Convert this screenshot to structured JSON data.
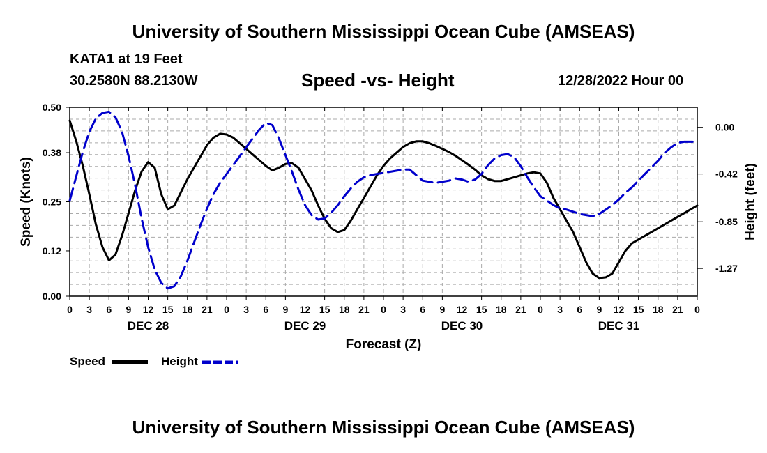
{
  "header": {
    "title": "University of Southern Mississippi Ocean Cube (AMSEAS)",
    "station": "KATA1 at 19 Feet",
    "coords": "30.2580N  88.2130W",
    "subtitle": "Speed -vs- Height",
    "datetime": "12/28/2022 Hour 00"
  },
  "footer": {
    "title": "University of Southern Mississippi Ocean Cube (AMSEAS)"
  },
  "colors": {
    "speed": "#000000",
    "height": "#0000cc",
    "grid": "#aaaaaa"
  },
  "chart_data": {
    "type": "line",
    "title": "Speed -vs- Height",
    "xlabel": "Forecast (Z)",
    "ylabel": "Speed (Knots)",
    "y2label": "Height (feet)",
    "xlim": [
      0,
      96
    ],
    "ylim": [
      0,
      0.5
    ],
    "y2lim": [
      -1.52,
      0.18
    ],
    "grid": true,
    "legend": "bottom-left",
    "x_tick_hours": [
      0,
      3,
      6,
      9,
      12,
      15,
      18,
      21,
      24,
      27,
      30,
      33,
      36,
      39,
      42,
      45,
      48,
      51,
      54,
      57,
      60,
      63,
      66,
      69,
      72,
      75,
      78,
      81,
      84,
      87,
      90,
      93,
      96
    ],
    "x_tick_labels": [
      "0",
      "3",
      "6",
      "9",
      "12",
      "15",
      "18",
      "21",
      "0",
      "3",
      "6",
      "9",
      "12",
      "15",
      "18",
      "21",
      "0",
      "3",
      "6",
      "9",
      "12",
      "15",
      "18",
      "21",
      "0",
      "3",
      "6",
      "9",
      "12",
      "15",
      "18",
      "21",
      "0"
    ],
    "day_labels": [
      {
        "hour": 12,
        "label": "DEC 28"
      },
      {
        "hour": 36,
        "label": "DEC 29"
      },
      {
        "hour": 60,
        "label": "DEC 30"
      },
      {
        "hour": 84,
        "label": "DEC 31"
      }
    ],
    "y_ticks": [
      0.0,
      0.12,
      0.25,
      0.38,
      0.5
    ],
    "y_tick_labels": [
      "0.00",
      "0.12",
      "0.25",
      "0.38",
      "0.50"
    ],
    "y2_ticks": [
      0.0,
      -0.42,
      -0.85,
      -1.27
    ],
    "y2_tick_labels": [
      "0.00",
      "-0.42",
      "-0.85",
      "-1.27"
    ],
    "series": [
      {
        "name": "Speed",
        "axis": "left",
        "style": "solid",
        "x": [
          0,
          1,
          2,
          3,
          4,
          5,
          6,
          7,
          8,
          9,
          10,
          11,
          12,
          13,
          14,
          15,
          16,
          17,
          18,
          19,
          20,
          21,
          22,
          23,
          24,
          25,
          26,
          27,
          28,
          29,
          30,
          31,
          32,
          33,
          34,
          35,
          36,
          37,
          38,
          39,
          40,
          41,
          42,
          43,
          44,
          45,
          46,
          47,
          48,
          49,
          50,
          51,
          52,
          53,
          54,
          55,
          56,
          57,
          58,
          59,
          60,
          61,
          62,
          63,
          64,
          65,
          66,
          67,
          68,
          69,
          70,
          71,
          72,
          73,
          74,
          75,
          76,
          77,
          78,
          79,
          80,
          81,
          82,
          83,
          84,
          85,
          86,
          87,
          88,
          89,
          90,
          91,
          92,
          93,
          94,
          95,
          96
        ],
        "values": [
          0.465,
          0.41,
          0.345,
          0.27,
          0.19,
          0.13,
          0.095,
          0.11,
          0.16,
          0.22,
          0.28,
          0.33,
          0.355,
          0.34,
          0.27,
          0.23,
          0.24,
          0.275,
          0.31,
          0.34,
          0.37,
          0.4,
          0.42,
          0.43,
          0.428,
          0.42,
          0.405,
          0.39,
          0.375,
          0.36,
          0.345,
          0.333,
          0.34,
          0.35,
          0.352,
          0.34,
          0.31,
          0.28,
          0.24,
          0.205,
          0.18,
          0.17,
          0.175,
          0.2,
          0.23,
          0.26,
          0.29,
          0.32,
          0.345,
          0.365,
          0.38,
          0.395,
          0.405,
          0.41,
          0.41,
          0.405,
          0.398,
          0.39,
          0.382,
          0.372,
          0.36,
          0.348,
          0.335,
          0.32,
          0.31,
          0.305,
          0.305,
          0.31,
          0.315,
          0.32,
          0.325,
          0.328,
          0.325,
          0.3,
          0.26,
          0.23,
          0.2,
          0.17,
          0.13,
          0.09,
          0.06,
          0.048,
          0.05,
          0.06,
          0.09,
          0.12,
          0.14,
          0.15,
          0.16,
          0.17,
          0.18,
          0.19,
          0.2,
          0.21,
          0.22,
          0.23,
          0.24
        ]
      },
      {
        "name": "Height",
        "axis": "right",
        "style": "dashed",
        "x": [
          0,
          1,
          2,
          3,
          4,
          5,
          6,
          7,
          8,
          9,
          10,
          11,
          12,
          13,
          14,
          15,
          16,
          17,
          18,
          19,
          20,
          21,
          22,
          23,
          24,
          25,
          26,
          27,
          28,
          29,
          30,
          31,
          32,
          33,
          34,
          35,
          36,
          37,
          38,
          39,
          40,
          41,
          42,
          43,
          44,
          45,
          46,
          47,
          48,
          49,
          50,
          51,
          52,
          53,
          54,
          55,
          56,
          57,
          58,
          59,
          60,
          61,
          62,
          63,
          64,
          65,
          66,
          67,
          68,
          69,
          70,
          71,
          72,
          73,
          74,
          75,
          76,
          77,
          78,
          79,
          80,
          81,
          82,
          83,
          84,
          85,
          86,
          87,
          88,
          89,
          90,
          91,
          92,
          93,
          94,
          95,
          96
        ],
        "values": [
          -0.66,
          -0.44,
          -0.22,
          -0.04,
          0.08,
          0.13,
          0.14,
          0.09,
          -0.04,
          -0.26,
          -0.52,
          -0.82,
          -1.08,
          -1.28,
          -1.4,
          -1.45,
          -1.43,
          -1.34,
          -1.2,
          -1.04,
          -0.88,
          -0.73,
          -0.6,
          -0.5,
          -0.42,
          -0.34,
          -0.26,
          -0.18,
          -0.1,
          -0.02,
          0.04,
          0.02,
          -0.1,
          -0.25,
          -0.4,
          -0.56,
          -0.7,
          -0.79,
          -0.83,
          -0.82,
          -0.77,
          -0.7,
          -0.62,
          -0.55,
          -0.49,
          -0.45,
          -0.43,
          -0.42,
          -0.41,
          -0.4,
          -0.39,
          -0.38,
          -0.38,
          -0.43,
          -0.48,
          -0.49,
          -0.5,
          -0.49,
          -0.48,
          -0.46,
          -0.47,
          -0.49,
          -0.47,
          -0.42,
          -0.34,
          -0.28,
          -0.25,
          -0.24,
          -0.27,
          -0.35,
          -0.45,
          -0.54,
          -0.62,
          -0.66,
          -0.7,
          -0.73,
          -0.74,
          -0.76,
          -0.78,
          -0.79,
          -0.8,
          -0.78,
          -0.74,
          -0.7,
          -0.65,
          -0.59,
          -0.54,
          -0.48,
          -0.42,
          -0.36,
          -0.3,
          -0.23,
          -0.18,
          -0.14,
          -0.13,
          -0.13,
          -0.13
        ]
      }
    ]
  },
  "legend_items": [
    {
      "label": "Speed",
      "color": "#000000",
      "style": "solid"
    },
    {
      "label": "Height",
      "color": "#0000cc",
      "style": "dashed"
    }
  ]
}
